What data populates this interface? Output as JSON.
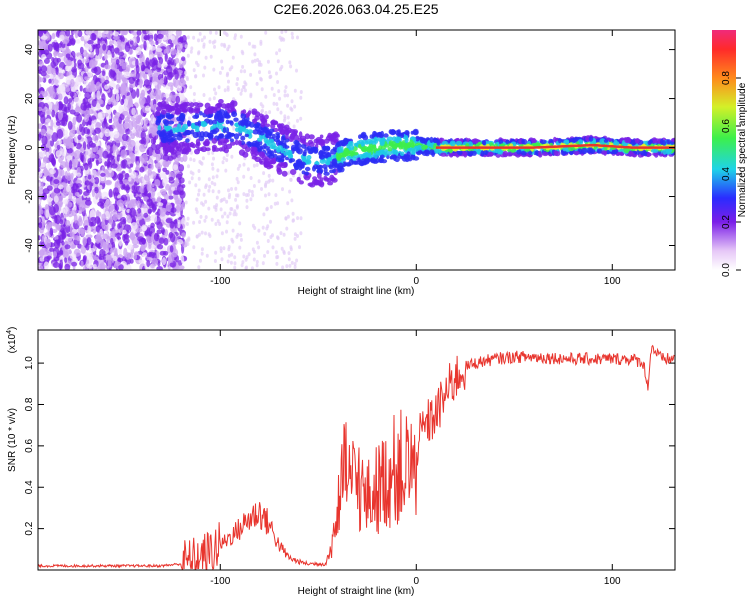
{
  "title": "C2E6.2026.063.04.25.E25",
  "chart_data": [
    {
      "type": "heatmap",
      "xlabel": "Height of straight line (km)",
      "ylabel": "Frequency (Hz)",
      "xlim": [
        -193,
        132
      ],
      "ylim": [
        -50,
        48
      ],
      "xticks": [
        -100,
        0,
        100
      ],
      "xtick_labels": [
        "-100",
        "0",
        "100"
      ],
      "yticks": [
        -40,
        -20,
        0,
        20,
        40
      ],
      "ytick_labels": [
        "-40",
        "-20",
        "0",
        "20",
        "40"
      ],
      "ridge_frequency": {
        "x": [
          -130,
          -115,
          -100,
          -90,
          -80,
          -70,
          -60,
          -52,
          -45,
          -38,
          -30,
          -20,
          -10,
          0,
          10,
          30,
          60,
          90,
          110,
          132
        ],
        "y": [
          8,
          8,
          9,
          8,
          4,
          0,
          -4,
          -6,
          -5,
          -3,
          -1,
          0,
          1,
          1,
          0,
          0,
          0,
          1,
          0,
          0
        ]
      },
      "colorbar": {
        "label": "Normalized spectral amplitude",
        "range": [
          0.0,
          1.0
        ],
        "ticks": [
          0.0,
          0.2,
          0.4,
          0.6,
          0.8
        ],
        "tick_labels": [
          "0.0",
          "0.2",
          "0.4",
          "0.6",
          "0.8"
        ]
      }
    },
    {
      "type": "line",
      "xlabel": "Height of straight line (km)",
      "ylabel": "SNR (10 * v/v)",
      "y_multiplier": "(x10",
      "y_multiplier_exp": "4",
      "y_multiplier_close": ")",
      "xlim": [
        -193,
        132
      ],
      "ylim": [
        0.0,
        1.16
      ],
      "xticks": [
        -100,
        0,
        100
      ],
      "xtick_labels": [
        "-100",
        "0",
        "100"
      ],
      "yticks": [
        0.2,
        0.4,
        0.6,
        0.8,
        1.0
      ],
      "ytick_labels": [
        "0.2",
        "0.4",
        "0.6",
        "0.8",
        "1.0"
      ],
      "color": "#e8352e",
      "series": [
        {
          "name": "SNR",
          "x": [
            -193,
            -170,
            -150,
            -130,
            -120,
            -110,
            -100,
            -90,
            -85,
            -80,
            -75,
            -70,
            -65,
            -60,
            -55,
            -50,
            -46,
            -44,
            -40,
            -36,
            -33,
            -30,
            -26,
            -22,
            -18,
            -14,
            -10,
            -5,
            0,
            5,
            10,
            15,
            20,
            25,
            30,
            40,
            50,
            60,
            80,
            100,
            110,
            116,
            118,
            120,
            125,
            132
          ],
          "y": [
            0.02,
            0.02,
            0.02,
            0.02,
            0.03,
            0.05,
            0.12,
            0.2,
            0.25,
            0.28,
            0.22,
            0.12,
            0.06,
            0.04,
            0.03,
            0.03,
            0.03,
            0.1,
            0.35,
            0.6,
            0.5,
            0.55,
            0.4,
            0.45,
            0.5,
            0.55,
            0.6,
            0.6,
            0.6,
            0.7,
            0.75,
            0.85,
            0.93,
            0.98,
            1.0,
            1.02,
            1.03,
            1.03,
            1.02,
            1.02,
            1.02,
            1.0,
            0.88,
            1.08,
            1.02,
            1.02
          ]
        }
      ]
    }
  ]
}
